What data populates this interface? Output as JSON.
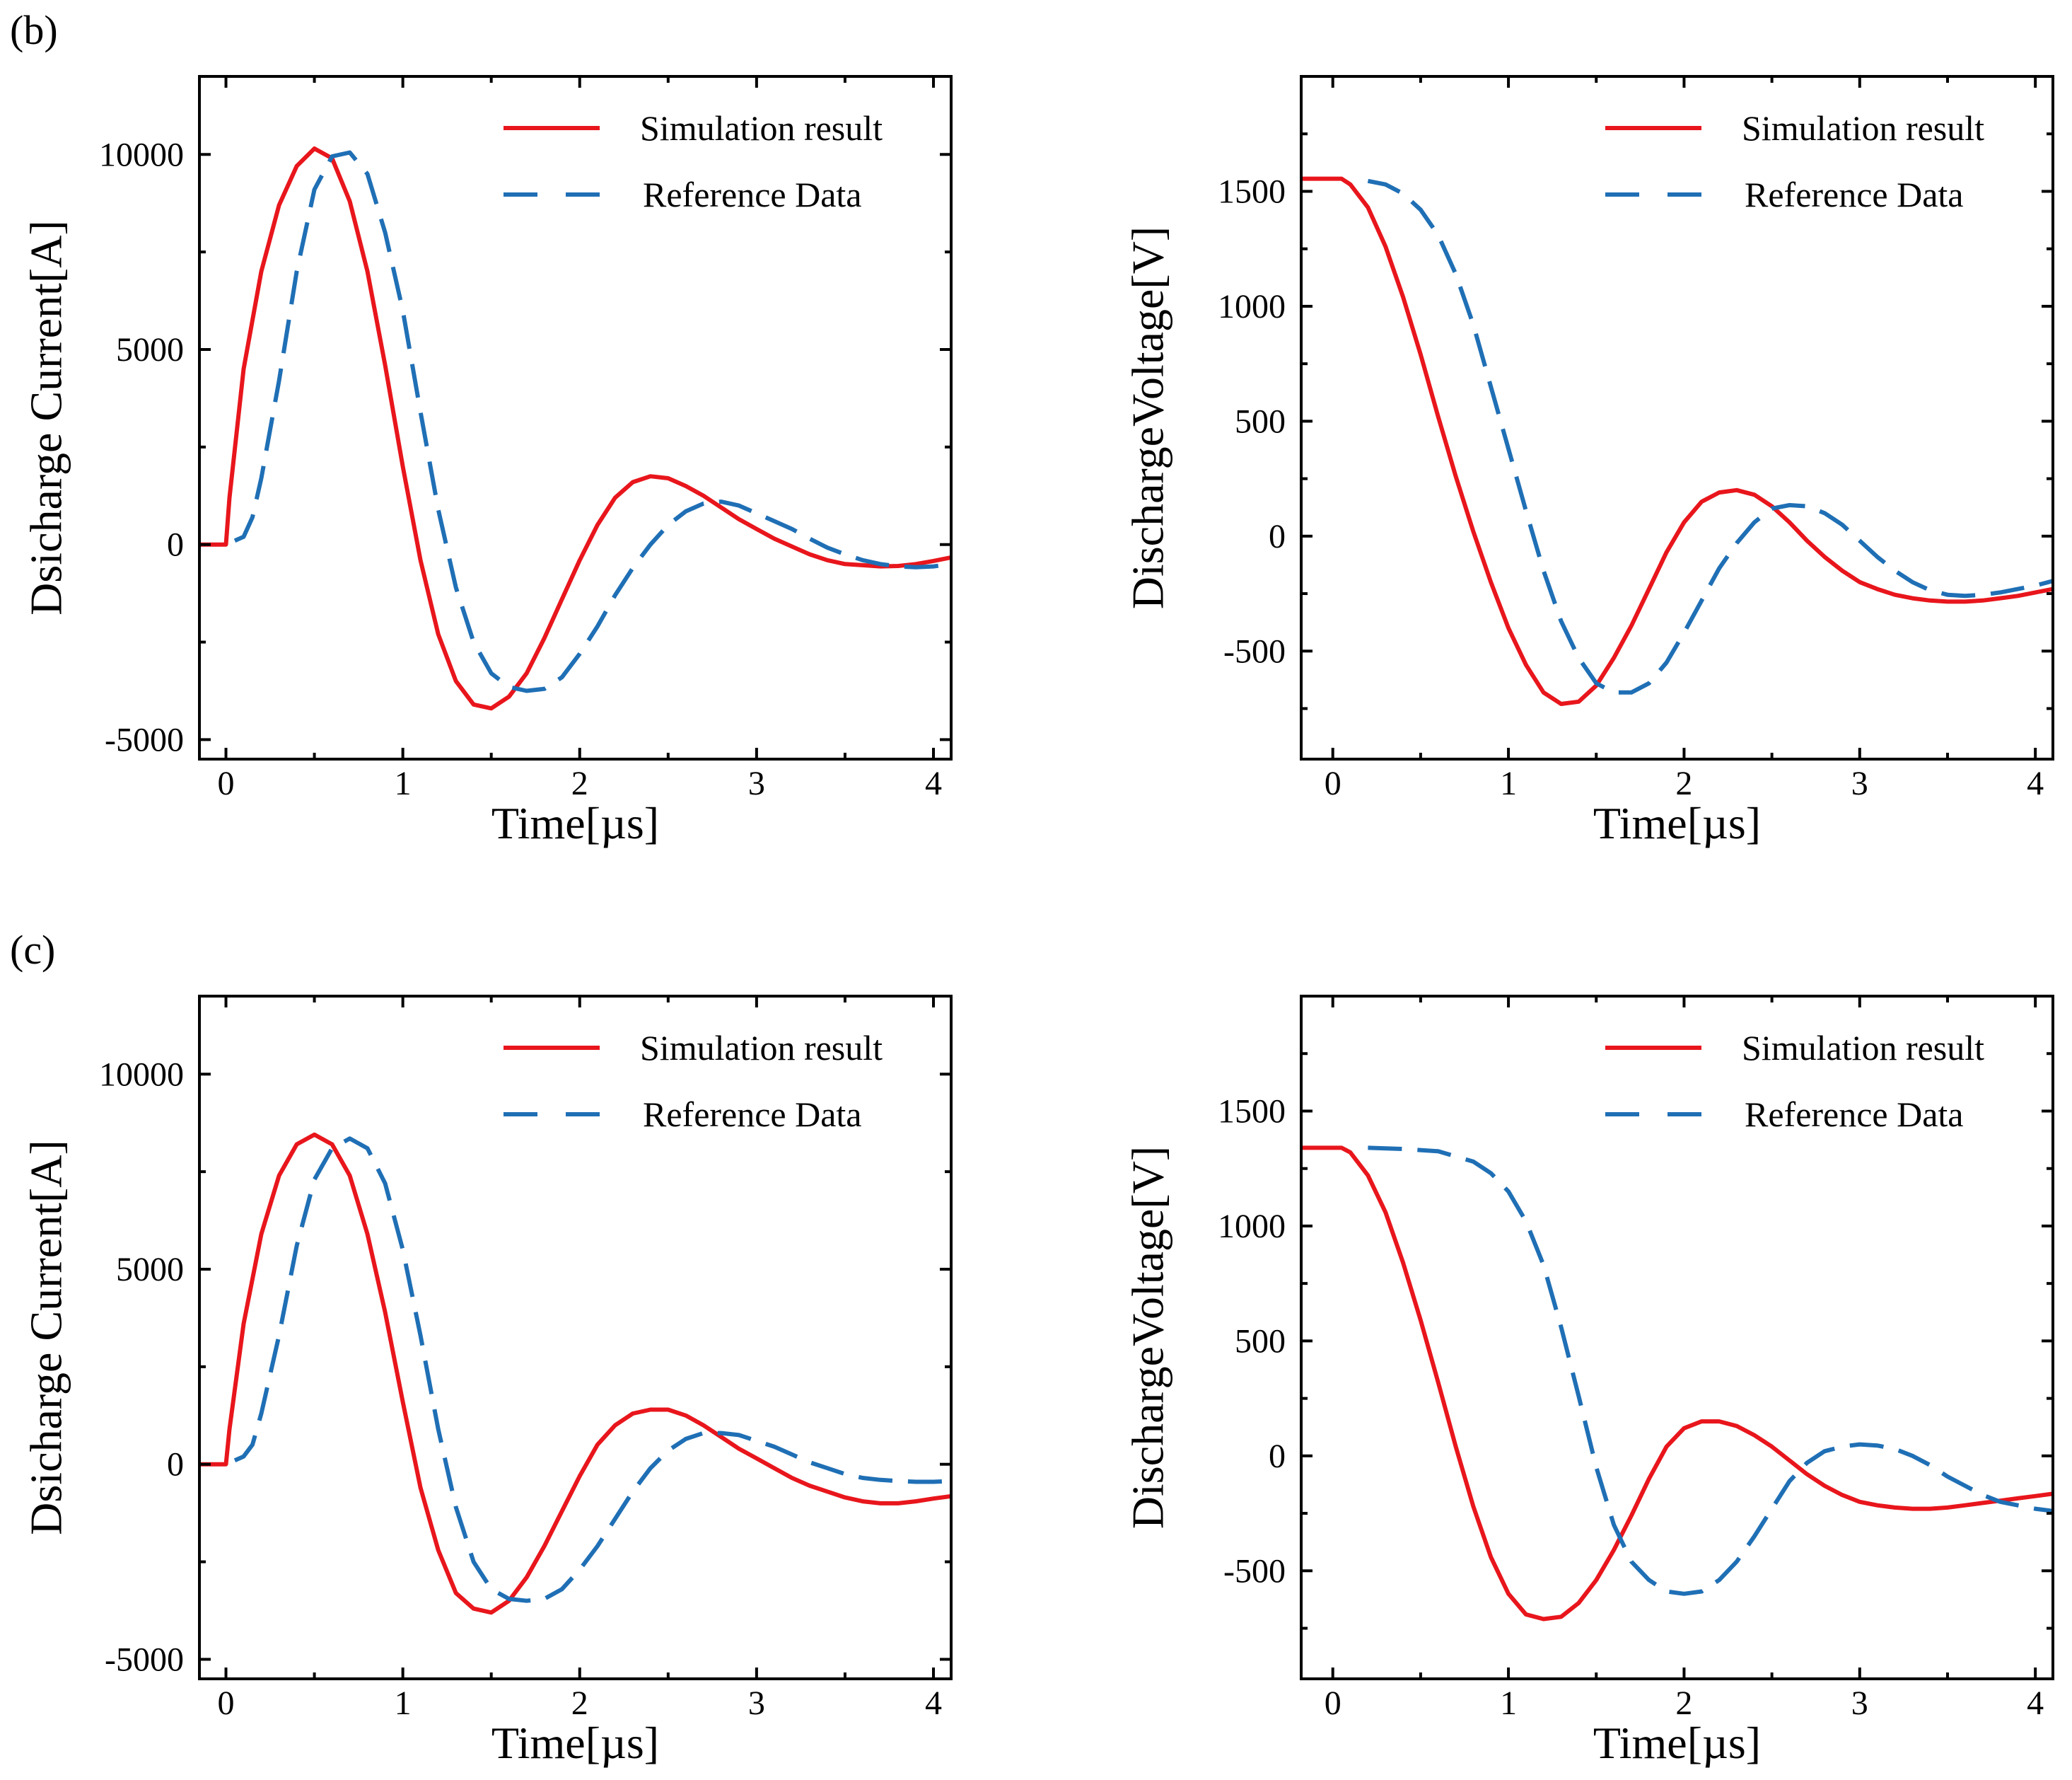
{
  "colors": {
    "simulation": "#e8161c",
    "reference": "#1f6fb5"
  },
  "panel_labels": [
    "(b)",
    "(c)"
  ],
  "chart_data": [
    {
      "type": "line",
      "xlabel": "Time[µs]",
      "ylabel": "Dsicharge Current[A]",
      "xlim": [
        -0.15,
        4.1
      ],
      "ylim": [
        -5500,
        12000
      ],
      "xticks": [
        0,
        1,
        2,
        3,
        4
      ],
      "yticks": [
        -5000,
        0,
        5000,
        10000
      ],
      "legend_position": "top-right",
      "series": [
        {
          "name": "Simulation result",
          "style": "solid",
          "x": [
            -0.15,
            0.0,
            0.02,
            0.1,
            0.2,
            0.3,
            0.4,
            0.5,
            0.6,
            0.7,
            0.8,
            0.9,
            1.0,
            1.1,
            1.2,
            1.3,
            1.4,
            1.5,
            1.6,
            1.7,
            1.8,
            1.9,
            2.0,
            2.1,
            2.2,
            2.3,
            2.4,
            2.5,
            2.6,
            2.7,
            2.8,
            2.9,
            3.0,
            3.1,
            3.2,
            3.3,
            3.4,
            3.5,
            3.6,
            3.7,
            3.8,
            3.9,
            4.0,
            4.1
          ],
          "y": [
            0,
            0,
            1200,
            4500,
            7000,
            8700,
            9700,
            10150,
            9900,
            8800,
            7000,
            4600,
            2000,
            -400,
            -2300,
            -3500,
            -4100,
            -4200,
            -3900,
            -3300,
            -2400,
            -1400,
            -400,
            500,
            1200,
            1600,
            1750,
            1700,
            1500,
            1250,
            950,
            650,
            400,
            150,
            -50,
            -250,
            -400,
            -500,
            -530,
            -560,
            -550,
            -500,
            -420,
            -330
          ]
        },
        {
          "name": "Reference Data",
          "style": "dashed",
          "x": [
            0.05,
            0.1,
            0.15,
            0.2,
            0.3,
            0.4,
            0.5,
            0.6,
            0.7,
            0.8,
            0.9,
            1.0,
            1.1,
            1.2,
            1.3,
            1.4,
            1.5,
            1.6,
            1.7,
            1.8,
            1.9,
            2.0,
            2.1,
            2.2,
            2.3,
            2.4,
            2.5,
            2.6,
            2.7,
            2.8,
            2.9,
            3.0,
            3.1,
            3.2,
            3.3,
            3.4,
            3.5,
            3.6,
            3.7,
            3.8,
            3.9,
            4.0,
            4.1
          ],
          "y": [
            100,
            200,
            700,
            1700,
            4200,
            7000,
            9100,
            9950,
            10050,
            9500,
            8000,
            6000,
            3400,
            900,
            -1100,
            -2500,
            -3300,
            -3650,
            -3750,
            -3700,
            -3400,
            -2800,
            -2100,
            -1300,
            -600,
            0,
            500,
            850,
            1050,
            1100,
            1000,
            800,
            600,
            400,
            150,
            -80,
            -250,
            -400,
            -500,
            -560,
            -580,
            -560,
            -500
          ]
        }
      ]
    },
    {
      "type": "line",
      "xlabel": "Time[µs]",
      "ylabel": "DischargeVoltage[V]",
      "xlim": [
        -0.18,
        4.1
      ],
      "ylim": [
        -970,
        2000
      ],
      "xticks": [
        0,
        1,
        2,
        3,
        4
      ],
      "yticks": [
        -500,
        0,
        500,
        1000,
        1500
      ],
      "legend_position": "top-right",
      "series": [
        {
          "name": "Simulation result",
          "style": "solid",
          "x": [
            -0.18,
            0.05,
            0.1,
            0.2,
            0.3,
            0.4,
            0.5,
            0.6,
            0.7,
            0.8,
            0.9,
            1.0,
            1.1,
            1.2,
            1.3,
            1.4,
            1.5,
            1.6,
            1.7,
            1.8,
            1.9,
            2.0,
            2.1,
            2.2,
            2.3,
            2.4,
            2.5,
            2.6,
            2.7,
            2.8,
            2.9,
            3.0,
            3.1,
            3.2,
            3.3,
            3.4,
            3.5,
            3.6,
            3.7,
            3.8,
            3.9,
            4.0,
            4.1
          ],
          "y": [
            1555,
            1555,
            1530,
            1430,
            1260,
            1040,
            790,
            520,
            260,
            20,
            -200,
            -400,
            -560,
            -680,
            -730,
            -720,
            -650,
            -530,
            -390,
            -230,
            -70,
            60,
            150,
            190,
            200,
            180,
            130,
            60,
            -20,
            -90,
            -150,
            -200,
            -230,
            -255,
            -270,
            -280,
            -285,
            -285,
            -280,
            -270,
            -260,
            -245,
            -230
          ]
        },
        {
          "name": "Reference Data",
          "style": "dashed",
          "x": [
            0.2,
            0.3,
            0.4,
            0.5,
            0.6,
            0.7,
            0.8,
            0.9,
            1.0,
            1.1,
            1.2,
            1.3,
            1.4,
            1.5,
            1.6,
            1.7,
            1.8,
            1.9,
            2.0,
            2.1,
            2.2,
            2.3,
            2.4,
            2.5,
            2.6,
            2.7,
            2.8,
            2.9,
            3.0,
            3.1,
            3.2,
            3.3,
            3.4,
            3.5,
            3.6,
            3.7,
            3.8,
            3.9,
            4.0,
            4.1
          ],
          "y": [
            1545,
            1530,
            1490,
            1420,
            1310,
            1140,
            920,
            650,
            380,
            110,
            -150,
            -370,
            -530,
            -640,
            -680,
            -680,
            -640,
            -550,
            -420,
            -280,
            -140,
            -30,
            60,
            120,
            135,
            130,
            100,
            50,
            -20,
            -90,
            -150,
            -200,
            -235,
            -255,
            -260,
            -255,
            -245,
            -230,
            -215,
            -195
          ]
        }
      ]
    },
    {
      "type": "line",
      "xlabel": "Time[µs]",
      "ylabel": "Dsicharge Current[A]",
      "xlim": [
        -0.15,
        4.1
      ],
      "ylim": [
        -5500,
        12000
      ],
      "xticks": [
        0,
        1,
        2,
        3,
        4
      ],
      "yticks": [
        -5000,
        0,
        5000,
        10000
      ],
      "legend_position": "top-right",
      "series": [
        {
          "name": "Simulation result",
          "style": "solid",
          "x": [
            -0.15,
            0.0,
            0.02,
            0.1,
            0.2,
            0.3,
            0.4,
            0.5,
            0.6,
            0.7,
            0.8,
            0.9,
            1.0,
            1.1,
            1.2,
            1.3,
            1.4,
            1.5,
            1.6,
            1.7,
            1.8,
            1.9,
            2.0,
            2.1,
            2.2,
            2.3,
            2.4,
            2.5,
            2.6,
            2.7,
            2.8,
            2.9,
            3.0,
            3.1,
            3.2,
            3.3,
            3.4,
            3.5,
            3.6,
            3.7,
            3.8,
            3.9,
            4.0,
            4.1
          ],
          "y": [
            0,
            0,
            900,
            3600,
            5900,
            7400,
            8200,
            8450,
            8200,
            7400,
            5900,
            3900,
            1600,
            -600,
            -2200,
            -3300,
            -3700,
            -3800,
            -3500,
            -2900,
            -2100,
            -1200,
            -300,
            500,
            1000,
            1300,
            1400,
            1400,
            1250,
            1000,
            700,
            400,
            150,
            -100,
            -350,
            -550,
            -700,
            -850,
            -950,
            -1000,
            -1000,
            -950,
            -880,
            -820
          ]
        },
        {
          "name": "Reference Data",
          "style": "dashed",
          "x": [
            0.05,
            0.1,
            0.15,
            0.2,
            0.3,
            0.4,
            0.5,
            0.6,
            0.7,
            0.8,
            0.9,
            1.0,
            1.1,
            1.2,
            1.3,
            1.4,
            1.5,
            1.6,
            1.7,
            1.8,
            1.9,
            2.0,
            2.1,
            2.2,
            2.3,
            2.4,
            2.5,
            2.6,
            2.7,
            2.8,
            2.9,
            3.0,
            3.1,
            3.2,
            3.3,
            3.4,
            3.5,
            3.6,
            3.7,
            3.8,
            3.9,
            4.0,
            4.1
          ],
          "y": [
            100,
            200,
            500,
            1300,
            3300,
            5600,
            7300,
            8100,
            8350,
            8100,
            7200,
            5500,
            3300,
            900,
            -1100,
            -2500,
            -3200,
            -3450,
            -3500,
            -3450,
            -3200,
            -2700,
            -2100,
            -1400,
            -700,
            -100,
            350,
            650,
            800,
            800,
            750,
            600,
            450,
            250,
            50,
            -100,
            -250,
            -350,
            -400,
            -430,
            -450,
            -450,
            -430
          ]
        }
      ]
    },
    {
      "type": "line",
      "xlabel": "Time[µs]",
      "ylabel": "DischargeVoltage[V]",
      "xlim": [
        -0.18,
        4.1
      ],
      "ylim": [
        -970,
        2000
      ],
      "xticks": [
        0,
        1,
        2,
        3,
        4
      ],
      "yticks": [
        -500,
        0,
        500,
        1000,
        1500
      ],
      "legend_position": "top-right",
      "series": [
        {
          "name": "Simulation result",
          "style": "solid",
          "x": [
            -0.18,
            0.05,
            0.1,
            0.2,
            0.3,
            0.4,
            0.5,
            0.6,
            0.7,
            0.8,
            0.9,
            1.0,
            1.1,
            1.2,
            1.3,
            1.4,
            1.5,
            1.6,
            1.7,
            1.8,
            1.9,
            2.0,
            2.1,
            2.2,
            2.3,
            2.4,
            2.5,
            2.6,
            2.7,
            2.8,
            2.9,
            3.0,
            3.1,
            3.2,
            3.3,
            3.4,
            3.5,
            3.6,
            3.7,
            3.8,
            3.9,
            4.0,
            4.1
          ],
          "y": [
            1340,
            1340,
            1320,
            1220,
            1060,
            840,
            590,
            320,
            40,
            -220,
            -440,
            -600,
            -690,
            -710,
            -700,
            -640,
            -540,
            -410,
            -260,
            -100,
            40,
            120,
            150,
            150,
            130,
            90,
            40,
            -20,
            -80,
            -130,
            -170,
            -200,
            -215,
            -225,
            -230,
            -230,
            -225,
            -215,
            -205,
            -195,
            -185,
            -175,
            -165
          ]
        },
        {
          "name": "Reference Data",
          "style": "dashed",
          "x": [
            0.2,
            0.4,
            0.6,
            0.8,
            0.9,
            1.0,
            1.1,
            1.2,
            1.3,
            1.4,
            1.5,
            1.6,
            1.7,
            1.8,
            1.9,
            2.0,
            2.1,
            2.2,
            2.3,
            2.4,
            2.5,
            2.6,
            2.7,
            2.8,
            2.9,
            3.0,
            3.1,
            3.2,
            3.3,
            3.4,
            3.5,
            3.6,
            3.7,
            3.8,
            3.9,
            4.0,
            4.1
          ],
          "y": [
            1340,
            1335,
            1325,
            1280,
            1230,
            1150,
            1020,
            830,
            560,
            260,
            -50,
            -300,
            -460,
            -540,
            -590,
            -600,
            -590,
            -540,
            -460,
            -350,
            -230,
            -110,
            -30,
            20,
            40,
            50,
            45,
            30,
            0,
            -40,
            -90,
            -130,
            -170,
            -200,
            -215,
            -230,
            -240
          ]
        }
      ]
    }
  ]
}
